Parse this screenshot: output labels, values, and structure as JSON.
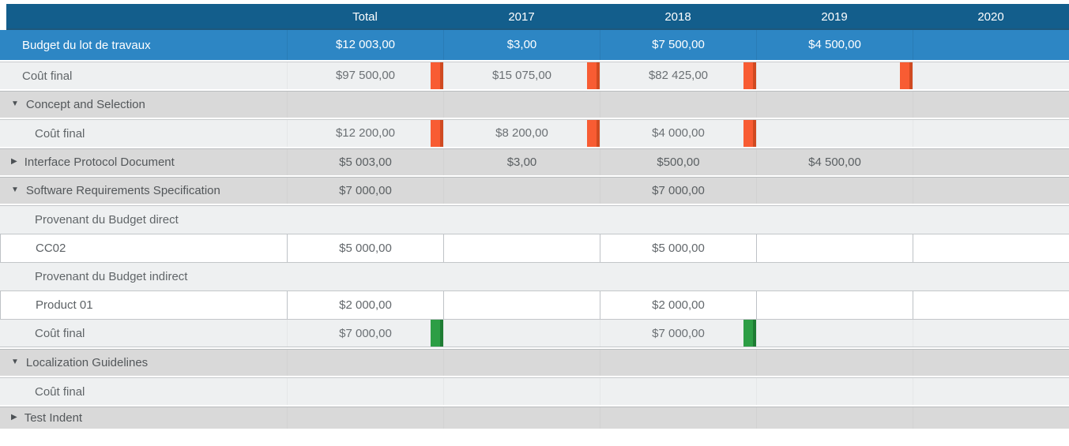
{
  "columns": [
    "",
    "Total",
    "2017",
    "2018",
    "2019",
    "2020"
  ],
  "colors": {
    "header_bg": "#135e8c",
    "budget_row_bg": "#2d86c4",
    "group_row_bg": "#d9d9d9",
    "light_row_bg": "#eef0f1",
    "over_budget_bar": "#f85c33",
    "on_budget_bar": "#2d9e45"
  },
  "icons": {
    "expanded": "▼",
    "collapsed": "▶"
  },
  "rows": [
    {
      "type": "budget",
      "label": "Budget du lot de travaux",
      "indent": 0,
      "values": [
        "$12 003,00",
        "$3,00",
        "$7 500,00",
        "$4 500,00",
        ""
      ]
    },
    {
      "type": "cost",
      "label": "Coût final",
      "indent": 0,
      "values": [
        "$97 500,00",
        "$15 075,00",
        "$82 425,00",
        "",
        ""
      ],
      "bar_color": "orange",
      "bar_cols": [
        0,
        1,
        2,
        3
      ]
    },
    {
      "type": "group",
      "label": "Concept and Selection",
      "expanded": true,
      "values": [
        "",
        "",
        "",
        "",
        ""
      ]
    },
    {
      "type": "cost",
      "label": "Coût final",
      "indent": 1,
      "values": [
        "$12 200,00",
        "$8 200,00",
        "$4 000,00",
        "",
        ""
      ],
      "bar_color": "orange",
      "bar_cols": [
        0,
        1,
        2
      ]
    },
    {
      "type": "group",
      "label": "Interface Protocol Document",
      "expanded": false,
      "values": [
        "$5 003,00",
        "$3,00",
        "$500,00",
        "$4 500,00",
        ""
      ]
    },
    {
      "type": "group",
      "label": "Software Requirements Specification",
      "expanded": true,
      "values": [
        "$7 000,00",
        "",
        "$7 000,00",
        "",
        ""
      ]
    },
    {
      "type": "subheader",
      "label": "Provenant du Budget direct",
      "indent": 1,
      "block": "first",
      "values": [
        "",
        "",
        "",
        "",
        ""
      ]
    },
    {
      "type": "editable",
      "label": "CC02",
      "indent": 1,
      "block": "mid",
      "values": [
        "$5 000,00",
        "",
        "$5 000,00",
        "",
        ""
      ]
    },
    {
      "type": "subheader",
      "label": "Provenant du Budget indirect",
      "indent": 1,
      "block": "mid",
      "values": [
        "",
        "",
        "",
        "",
        ""
      ]
    },
    {
      "type": "editable",
      "label": "Product 01",
      "indent": 1,
      "block": "mid",
      "values": [
        "$2 000,00",
        "",
        "$2 000,00",
        "",
        ""
      ]
    },
    {
      "type": "cost",
      "label": "Coût final",
      "indent": 1,
      "block": "last",
      "values": [
        "$7 000,00",
        "",
        "$7 000,00",
        "",
        ""
      ],
      "bar_color": "green",
      "bar_cols": [
        0,
        2
      ]
    },
    {
      "type": "group",
      "label": "Localization Guidelines",
      "expanded": true,
      "values": [
        "",
        "",
        "",
        "",
        ""
      ]
    },
    {
      "type": "cost",
      "label": "Coût final",
      "indent": 1,
      "values": [
        "",
        "",
        "",
        "",
        ""
      ]
    },
    {
      "type": "group",
      "label": "Test Indent",
      "expanded": false,
      "short": true,
      "values": [
        "",
        "",
        "",
        "",
        ""
      ]
    }
  ]
}
